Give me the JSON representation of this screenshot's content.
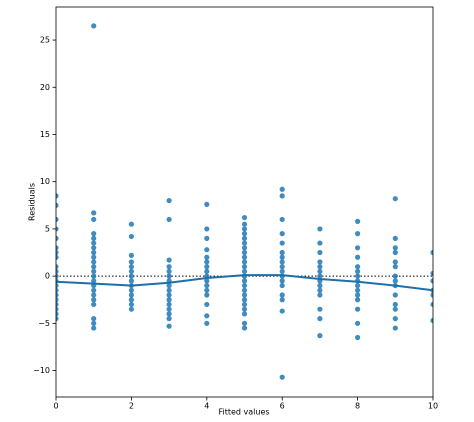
{
  "chart_data": {
    "type": "scatter",
    "x_label": "Fitted values",
    "y_label": "Residuals",
    "xlim": [
      0,
      10
    ],
    "ylim": [
      -12.8,
      28.5
    ],
    "xticks": [
      0,
      2,
      4,
      6,
      8,
      10
    ],
    "yticks": [
      {
        "value": -10,
        "label": "−10"
      },
      {
        "value": -5,
        "label": "−5"
      },
      0,
      5,
      10,
      15,
      20,
      25
    ],
    "reference_line": 0,
    "series": [
      {
        "color": "#1f77b4",
        "x": [
          0,
          0,
          0,
          0,
          0,
          0,
          0,
          0,
          0,
          0,
          0,
          0,
          0,
          0,
          0,
          0,
          0,
          0,
          0,
          0,
          1,
          1,
          1,
          1,
          1,
          1,
          1,
          1,
          1,
          1,
          1,
          1,
          1,
          1,
          1,
          1,
          1,
          1,
          1,
          1,
          1,
          1,
          2,
          2,
          2,
          2,
          2,
          2,
          2,
          2,
          2,
          2,
          2,
          2,
          2,
          2,
          3,
          3,
          3,
          3,
          3,
          3,
          3,
          3,
          3,
          3,
          3,
          3,
          3,
          3,
          3,
          3,
          4,
          4,
          4,
          4,
          4,
          4,
          4,
          4,
          4,
          4,
          4,
          4,
          4,
          4,
          4,
          4,
          5,
          5,
          5,
          5,
          5,
          5,
          5,
          5,
          5,
          5,
          5,
          5,
          5,
          5,
          5,
          5,
          5,
          5,
          5,
          5,
          5,
          5,
          5,
          6,
          6,
          6,
          6,
          6,
          6,
          6,
          6,
          6,
          6,
          6,
          6,
          6,
          6,
          6,
          6,
          6,
          7,
          7,
          7,
          7,
          7,
          7,
          7,
          7,
          7,
          7,
          7,
          7,
          7,
          7,
          8,
          8,
          8,
          8,
          8,
          8,
          8,
          8,
          8,
          8,
          8,
          8,
          8,
          8,
          8,
          9,
          9,
          9,
          9,
          9,
          9,
          9,
          9,
          9,
          9,
          9,
          9,
          9,
          9,
          10,
          10,
          10,
          10,
          10,
          10,
          10
        ],
        "y": [
          8.5,
          7.5,
          6,
          5,
          4,
          3,
          2.5,
          2,
          1,
          0.5,
          0,
          -0.5,
          -1,
          -1.5,
          -2,
          -2.5,
          -3,
          -3.5,
          -4,
          -4.5,
          26.5,
          6.7,
          6,
          4.5,
          4,
          3.5,
          3,
          2.5,
          2,
          1.5,
          1,
          0.5,
          0,
          -0.5,
          -1,
          -1.5,
          -2,
          -2.5,
          -3,
          -4.5,
          -5,
          -5.5,
          5.5,
          4.2,
          2.2,
          1.5,
          1,
          0.5,
          0,
          -0.5,
          -1,
          -1.5,
          -2,
          -2.5,
          -3,
          -3.5,
          8,
          6,
          1.7,
          1,
          0.5,
          0,
          -0.5,
          -1,
          -1.5,
          -2,
          -2.5,
          -3,
          -3.5,
          -4,
          -4.5,
          -5.3,
          7.6,
          5,
          4,
          2.8,
          2,
          1.5,
          1,
          0.5,
          0,
          -0.5,
          -1,
          -1.5,
          -2,
          -3,
          -4.2,
          -5,
          6.2,
          5.5,
          5,
          4.5,
          4,
          3.5,
          3,
          2.5,
          2,
          1.5,
          1,
          0.5,
          0,
          -0.5,
          -1,
          -1.5,
          -2,
          -2.5,
          -3,
          -3.5,
          -4,
          -5,
          -5.5,
          9.2,
          8.5,
          6,
          4.5,
          3.5,
          2.5,
          2,
          1.5,
          1,
          0.5,
          0,
          -0.5,
          -1,
          -2,
          -2.5,
          -3.7,
          -10.7,
          5,
          3.5,
          2.5,
          1.5,
          1,
          0.5,
          0,
          -0.5,
          -1,
          -1.5,
          -2,
          -3.5,
          -4.5,
          -6.3,
          5.8,
          4.5,
          3,
          2,
          1,
          0.5,
          0,
          -0.5,
          -1,
          -1.5,
          -2,
          -2.5,
          -3.5,
          -5,
          -6.5,
          8.2,
          4,
          3,
          2.5,
          1.5,
          1,
          0,
          -0.5,
          -1,
          -2,
          -3,
          -3.5,
          -4.5,
          -5.5,
          2.5,
          0.3,
          -0.5,
          -1.5,
          -2,
          -3,
          -4.7
        ]
      }
    ],
    "trend": {
      "color": "#1f6fa8",
      "x": [
        0,
        1,
        2,
        3,
        4,
        5,
        6,
        7,
        8,
        9,
        10
      ],
      "y": [
        -0.6,
        -0.8,
        -1.0,
        -0.7,
        -0.2,
        0.1,
        0.1,
        -0.3,
        -0.6,
        -1.0,
        -1.5
      ]
    }
  }
}
